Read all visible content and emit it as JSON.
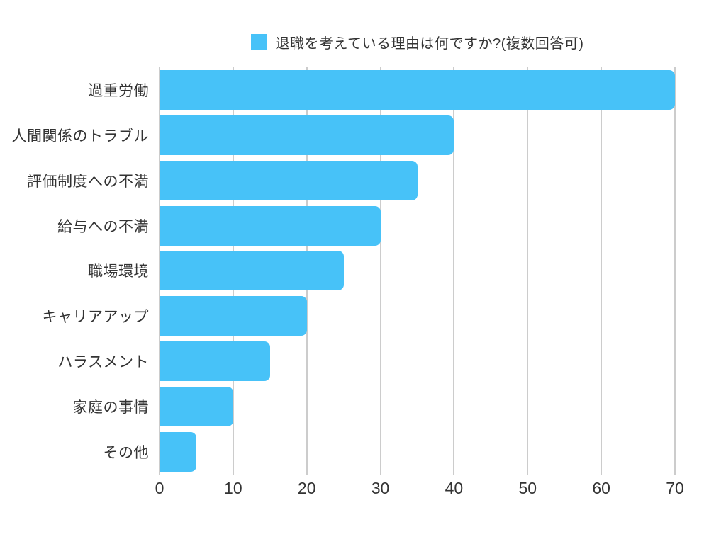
{
  "page": {
    "background": "#ffffff"
  },
  "legend": {
    "label": "退職を考えている理由は何ですか?(複数回答可)",
    "swatch_color": "#47C2F8"
  },
  "chart_data": {
    "type": "bar",
    "orientation": "horizontal",
    "title": "退職を考えている理由は何ですか?(複数回答可)",
    "categories": [
      "過重労働",
      "人間関係のトラブル",
      "評価制度への不満",
      "給与への不満",
      "職場環境",
      "キャリアアップ",
      "ハラスメント",
      "家庭の事情",
      "その他"
    ],
    "values": [
      70,
      40,
      35,
      30,
      25,
      20,
      15,
      10,
      5
    ],
    "xlabel": "",
    "ylabel": "",
    "xlim": [
      0,
      70
    ],
    "x_ticks": [
      0,
      10,
      20,
      30,
      40,
      50,
      60,
      70
    ],
    "grid": "vertical",
    "legend_position": "top",
    "bar_color": "#47C2F8",
    "gridline_color": "#cccccc",
    "text_color": "#333333"
  }
}
